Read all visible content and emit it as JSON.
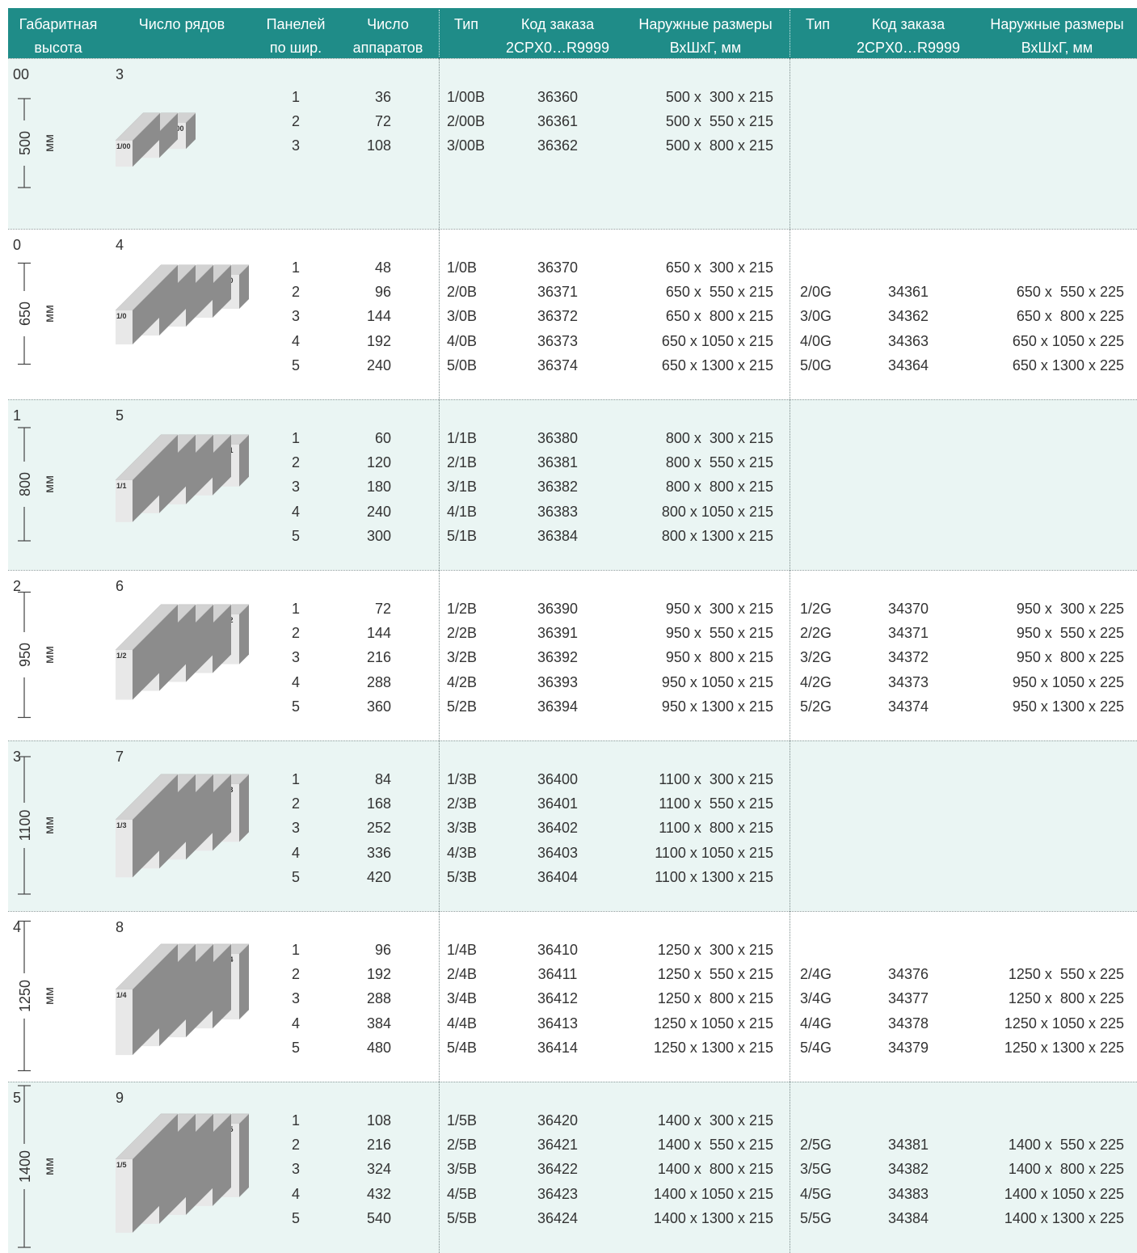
{
  "header": {
    "columns": [
      [
        "Габаритная",
        "высота"
      ],
      [
        "Число рядов"
      ],
      [
        "Панелей",
        "по шир."
      ],
      [
        "Число",
        "аппаратов"
      ],
      [
        "Тип"
      ],
      [
        "Код заказа",
        "2CPX0…R9999"
      ],
      [
        "Наружные размеры",
        "ВхШхГ, мм"
      ],
      [
        "Тип"
      ],
      [
        "Код заказа",
        "2CPX0…R9999"
      ],
      [
        "Наружные размеры",
        "ВхШхГ, мм"
      ]
    ]
  },
  "groups": [
    {
      "size": "00",
      "rows_count": 3,
      "height": 500,
      "unit": "мм",
      "labels": [
        "1/00",
        "2/00",
        "3/00"
      ],
      "rows": [
        {
          "panels": 1,
          "devices": 36,
          "type": "1/00B",
          "code": 36360,
          "dims": "500 x  300 x 215"
        },
        {
          "panels": 2,
          "devices": 72,
          "type": "2/00B",
          "code": 36361,
          "dims": "500 x  550 x 215"
        },
        {
          "panels": 3,
          "devices": 108,
          "type": "3/00B",
          "code": 36362,
          "dims": "500 x  800 x 215"
        }
      ]
    },
    {
      "size": "0",
      "rows_count": 4,
      "height": 650,
      "unit": "мм",
      "labels": [
        "1/0",
        "2/0",
        "3/0",
        "4/0",
        "5/0"
      ],
      "rows": [
        {
          "panels": 1,
          "devices": 48,
          "type": "1/0B",
          "code": 36370,
          "dims": "650 x  300 x 215"
        },
        {
          "panels": 2,
          "devices": 96,
          "type": "2/0B",
          "code": 36371,
          "dims": "650 x  550 x 215",
          "g_type": "2/0G",
          "g_code": 34361,
          "g_dims": "650 x  550 x 225"
        },
        {
          "panels": 3,
          "devices": 144,
          "type": "3/0B",
          "code": 36372,
          "dims": "650 x  800 x 215",
          "g_type": "3/0G",
          "g_code": 34362,
          "g_dims": "650 x  800 x 225"
        },
        {
          "panels": 4,
          "devices": 192,
          "type": "4/0B",
          "code": 36373,
          "dims": "650 x 1050 x 215",
          "g_type": "4/0G",
          "g_code": 34363,
          "g_dims": "650 x 1050 x 225"
        },
        {
          "panels": 5,
          "devices": 240,
          "type": "5/0B",
          "code": 36374,
          "dims": "650 x 1300 x 215",
          "g_type": "5/0G",
          "g_code": 34364,
          "g_dims": "650 x 1300 x 225"
        }
      ]
    },
    {
      "size": "1",
      "rows_count": 5,
      "height": 800,
      "unit": "мм",
      "labels": [
        "1/1",
        "2/1",
        "3/1",
        "4/1",
        "5/1"
      ],
      "rows": [
        {
          "panels": 1,
          "devices": 60,
          "type": "1/1B",
          "code": 36380,
          "dims": "800 x  300 x 215"
        },
        {
          "panels": 2,
          "devices": 120,
          "type": "2/1B",
          "code": 36381,
          "dims": "800 x  550 x 215"
        },
        {
          "panels": 3,
          "devices": 180,
          "type": "3/1B",
          "code": 36382,
          "dims": "800 x  800 x 215"
        },
        {
          "panels": 4,
          "devices": 240,
          "type": "4/1B",
          "code": 36383,
          "dims": "800 x 1050 x 215"
        },
        {
          "panels": 5,
          "devices": 300,
          "type": "5/1B",
          "code": 36384,
          "dims": "800 x 1300 x 215"
        }
      ]
    },
    {
      "size": "2",
      "rows_count": 6,
      "height": 950,
      "unit": "мм",
      "labels": [
        "1/2",
        "2/2",
        "3/2",
        "4/2",
        "5/2"
      ],
      "rows": [
        {
          "panels": 1,
          "devices": 72,
          "type": "1/2B",
          "code": 36390,
          "dims": "950 x  300 x 215",
          "g_type": "1/2G",
          "g_code": 34370,
          "g_dims": "950 x  300 x 225"
        },
        {
          "panels": 2,
          "devices": 144,
          "type": "2/2B",
          "code": 36391,
          "dims": "950 x  550 x 215",
          "g_type": "2/2G",
          "g_code": 34371,
          "g_dims": "950 x  550 x 225"
        },
        {
          "panels": 3,
          "devices": 216,
          "type": "3/2B",
          "code": 36392,
          "dims": "950 x  800 x 215",
          "g_type": "3/2G",
          "g_code": 34372,
          "g_dims": "950 x  800 x 225"
        },
        {
          "panels": 4,
          "devices": 288,
          "type": "4/2B",
          "code": 36393,
          "dims": "950 x 1050 x 215",
          "g_type": "4/2G",
          "g_code": 34373,
          "g_dims": "950 x 1050 x 225"
        },
        {
          "panels": 5,
          "devices": 360,
          "type": "5/2B",
          "code": 36394,
          "dims": "950 x 1300 x 215",
          "g_type": "5/2G",
          "g_code": 34374,
          "g_dims": "950 x 1300 x 225"
        }
      ]
    },
    {
      "size": "3",
      "rows_count": 7,
      "height": 1100,
      "unit": "мм",
      "labels": [
        "1/3",
        "2/3",
        "3/3",
        "4/3",
        "5/3"
      ],
      "rows": [
        {
          "panels": 1,
          "devices": 84,
          "type": "1/3B",
          "code": 36400,
          "dims": "1100 x  300 x 215"
        },
        {
          "panels": 2,
          "devices": 168,
          "type": "2/3B",
          "code": 36401,
          "dims": "1100 x  550 x 215"
        },
        {
          "panels": 3,
          "devices": 252,
          "type": "3/3B",
          "code": 36402,
          "dims": "1100 x  800 x 215"
        },
        {
          "panels": 4,
          "devices": 336,
          "type": "4/3B",
          "code": 36403,
          "dims": "1100 x 1050 x 215"
        },
        {
          "panels": 5,
          "devices": 420,
          "type": "5/3B",
          "code": 36404,
          "dims": "1100 x 1300 x 215"
        }
      ]
    },
    {
      "size": "4",
      "rows_count": 8,
      "height": 1250,
      "unit": "мм",
      "labels": [
        "1/4",
        "2/4",
        "3/4",
        "4/4",
        "5/4"
      ],
      "rows": [
        {
          "panels": 1,
          "devices": 96,
          "type": "1/4B",
          "code": 36410,
          "dims": "1250 x  300 x 215"
        },
        {
          "panels": 2,
          "devices": 192,
          "type": "2/4B",
          "code": 36411,
          "dims": "1250 x  550 x 215",
          "g_type": "2/4G",
          "g_code": 34376,
          "g_dims": "1250 x  550 x 225"
        },
        {
          "panels": 3,
          "devices": 288,
          "type": "3/4B",
          "code": 36412,
          "dims": "1250 x  800 x 215",
          "g_type": "3/4G",
          "g_code": 34377,
          "g_dims": "1250 x  800 x 225"
        },
        {
          "panels": 4,
          "devices": 384,
          "type": "4/4B",
          "code": 36413,
          "dims": "1250 x 1050 x 215",
          "g_type": "4/4G",
          "g_code": 34378,
          "g_dims": "1250 x 1050 x 225"
        },
        {
          "panels": 5,
          "devices": 480,
          "type": "5/4B",
          "code": 36414,
          "dims": "1250 x 1300 x 215",
          "g_type": "5/4G",
          "g_code": 34379,
          "g_dims": "1250 x 1300 x 225"
        }
      ]
    },
    {
      "size": "5",
      "rows_count": 9,
      "height": 1400,
      "unit": "мм",
      "labels": [
        "1/5",
        "2/5",
        "3/5",
        "4/5",
        "5/5"
      ],
      "rows": [
        {
          "panels": 1,
          "devices": 108,
          "type": "1/5B",
          "code": 36420,
          "dims": "1400 x  300 x 215"
        },
        {
          "panels": 2,
          "devices": 216,
          "type": "2/5B",
          "code": 36421,
          "dims": "1400 x  550 x 215",
          "g_type": "2/5G",
          "g_code": 34381,
          "g_dims": "1400 x  550 x 225"
        },
        {
          "panels": 3,
          "devices": 324,
          "type": "3/5B",
          "code": 36422,
          "dims": "1400 x  800 x 215",
          "g_type": "3/5G",
          "g_code": 34382,
          "g_dims": "1400 x  800 x 225"
        },
        {
          "panels": 4,
          "devices": 432,
          "type": "4/5B",
          "code": 36423,
          "dims": "1400 x 1050 x 215",
          "g_type": "4/5G",
          "g_code": 34383,
          "g_dims": "1400 x 1050 x 225"
        },
        {
          "panels": 5,
          "devices": 540,
          "type": "5/5B",
          "code": 36424,
          "dims": "1400 x 1300 x 215",
          "g_type": "5/5G",
          "g_code": 34384,
          "g_dims": "1400 x 1300 x 225"
        }
      ]
    }
  ]
}
